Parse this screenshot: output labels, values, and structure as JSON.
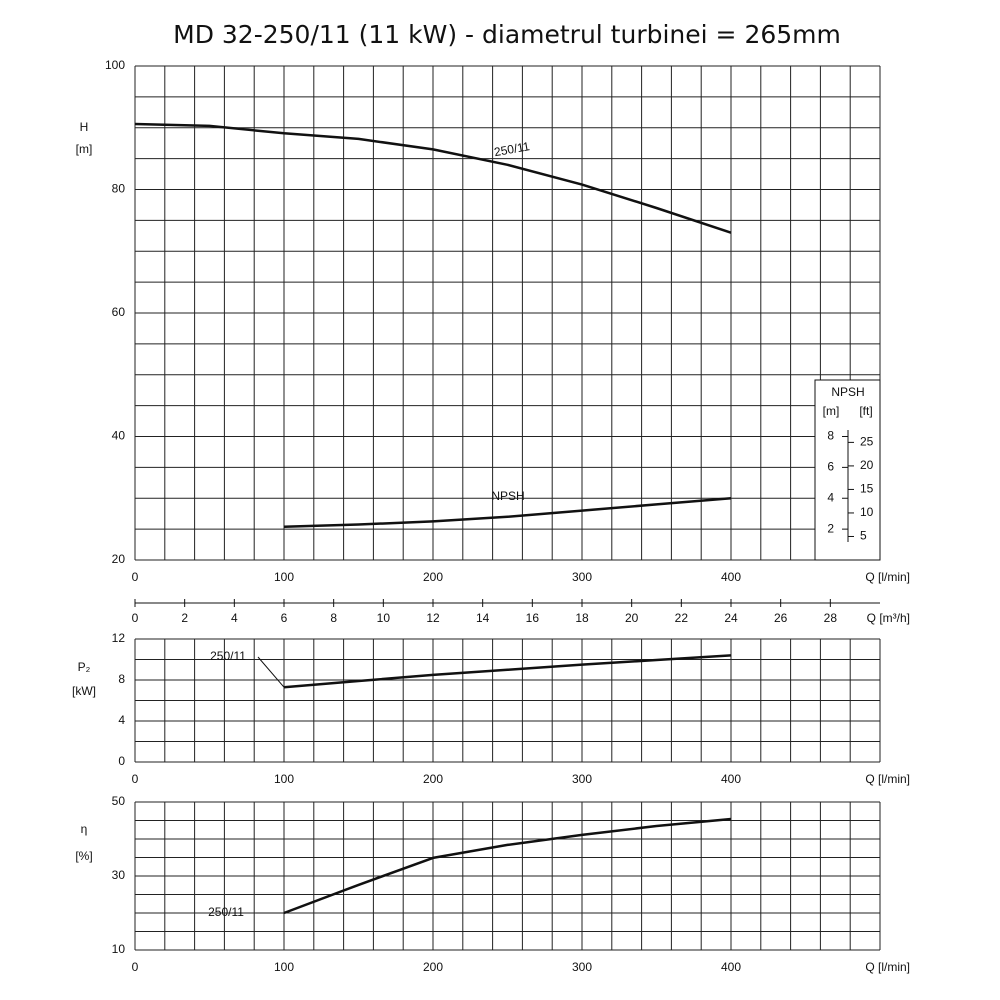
{
  "title": "MD 32-250/11 (11 kW) - diametrul turbinei = 265mm",
  "chart_data": [
    {
      "type": "line",
      "ylabel": "H",
      "yunit": "[m]",
      "xlabel": "Q [l/min]",
      "xlim": [
        0,
        500
      ],
      "xticks": [
        0,
        100,
        200,
        300,
        400
      ],
      "xgrid": [
        0,
        20,
        40,
        60,
        80,
        100,
        120,
        140,
        160,
        180,
        200,
        220,
        240,
        260,
        280,
        300,
        320,
        340,
        360,
        380,
        400,
        420,
        440,
        460,
        480,
        500
      ],
      "ylim": [
        20,
        100
      ],
      "yticks": [
        20,
        40,
        60,
        80,
        100
      ],
      "ygrid": [
        20,
        25,
        30,
        35,
        40,
        45,
        50,
        55,
        60,
        65,
        70,
        75,
        80,
        85,
        90,
        95,
        100
      ],
      "x2label": "Q [m³/h]",
      "x2lim": [
        0,
        30
      ],
      "x2ticks": [
        0,
        2,
        4,
        6,
        8,
        10,
        12,
        14,
        16,
        18,
        20,
        22,
        24,
        26,
        28
      ],
      "npsh_title": "NPSH",
      "y2label": "[m]",
      "y2lim": [
        0,
        32
      ],
      "y2ticks": [
        2,
        4,
        6,
        8
      ],
      "y3label": "[ft]",
      "y3lim": [
        0,
        105
      ],
      "y3ticks": [
        5,
        10,
        15,
        20,
        25
      ],
      "x": [
        0,
        50,
        100,
        150,
        200,
        250,
        300,
        350,
        400
      ],
      "series": [
        {
          "name": "250/11",
          "color": "#111111",
          "values": [
            90.6,
            90.3,
            89.1,
            88.2,
            86.5,
            84,
            80.8,
            77,
            73
          ]
        },
        {
          "name": "NPSH",
          "color": "#111111",
          "axis": "y2",
          "values": [
            null,
            null,
            2.15,
            2.3,
            2.5,
            2.8,
            3.2,
            3.6,
            4.0
          ]
        }
      ]
    },
    {
      "type": "line",
      "ylabel": "P₂",
      "yunit": "[kW]",
      "xlabel": "Q [l/min]",
      "xlim": [
        0,
        500
      ],
      "xticks": [
        0,
        100,
        200,
        300,
        400
      ],
      "xgrid": [
        0,
        20,
        40,
        60,
        80,
        100,
        120,
        140,
        160,
        180,
        200,
        220,
        240,
        260,
        280,
        300,
        320,
        340,
        360,
        380,
        400,
        420,
        440,
        460,
        480,
        500
      ],
      "ylim": [
        0,
        12
      ],
      "yticks": [
        0,
        4,
        8,
        12
      ],
      "ygrid": [
        0,
        2,
        4,
        6,
        8,
        10,
        12
      ],
      "x": [
        100,
        150,
        200,
        250,
        300,
        350,
        400
      ],
      "series": [
        {
          "name": "250/11",
          "color": "#111111",
          "values": [
            7.3,
            7.9,
            8.5,
            9.0,
            9.5,
            9.95,
            10.4
          ]
        }
      ]
    },
    {
      "type": "line",
      "ylabel": "η",
      "yunit": "[%]",
      "xlabel": "Q [l/min]",
      "xlim": [
        0,
        500
      ],
      "xticks": [
        0,
        100,
        200,
        300,
        400
      ],
      "xgrid": [
        0,
        20,
        40,
        60,
        80,
        100,
        120,
        140,
        160,
        180,
        200,
        220,
        240,
        260,
        280,
        300,
        320,
        340,
        360,
        380,
        400,
        420,
        440,
        460,
        480,
        500
      ],
      "ylim": [
        10,
        50
      ],
      "yticks": [
        10,
        30,
        50
      ],
      "ygrid": [
        10,
        15,
        20,
        25,
        30,
        35,
        40,
        45,
        50
      ],
      "x": [
        100,
        150,
        200,
        250,
        300,
        350,
        400
      ],
      "series": [
        {
          "name": "250/11",
          "color": "#111111",
          "values": [
            20,
            27.6,
            34.9,
            38.4,
            41.1,
            43.5,
            45.4
          ]
        }
      ]
    }
  ]
}
